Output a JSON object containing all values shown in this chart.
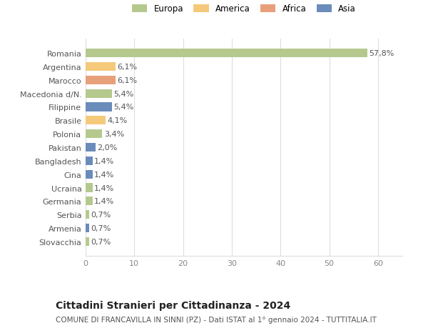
{
  "countries": [
    "Romania",
    "Argentina",
    "Marocco",
    "Macedonia d/N.",
    "Filippine",
    "Brasile",
    "Polonia",
    "Pakistan",
    "Bangladesh",
    "Cina",
    "Ucraina",
    "Germania",
    "Serbia",
    "Armenia",
    "Slovacchia"
  ],
  "values": [
    57.8,
    6.1,
    6.1,
    5.4,
    5.4,
    4.1,
    3.4,
    2.0,
    1.4,
    1.4,
    1.4,
    1.4,
    0.7,
    0.7,
    0.7
  ],
  "labels": [
    "57,8%",
    "6,1%",
    "6,1%",
    "5,4%",
    "5,4%",
    "4,1%",
    "3,4%",
    "2,0%",
    "1,4%",
    "1,4%",
    "1,4%",
    "1,4%",
    "0,7%",
    "0,7%",
    "0,7%"
  ],
  "colors": [
    "#b5c98e",
    "#f5c97a",
    "#e8a07a",
    "#b5c98e",
    "#6b8cba",
    "#f5c97a",
    "#b5c98e",
    "#6b8cba",
    "#6b8cba",
    "#6b8cba",
    "#b5c98e",
    "#b5c98e",
    "#b5c98e",
    "#6b8cba",
    "#b5c98e"
  ],
  "legend_labels": [
    "Europa",
    "America",
    "Africa",
    "Asia"
  ],
  "legend_colors": [
    "#b5c98e",
    "#f5c97a",
    "#e8a07a",
    "#6b8cba"
  ],
  "title": "Cittadini Stranieri per Cittadinanza - 2024",
  "subtitle": "COMUNE DI FRANCAVILLA IN SINNI (PZ) - Dati ISTAT al 1° gennaio 2024 - TUTTITALIA.IT",
  "xlim": [
    0,
    65
  ],
  "xticks": [
    0,
    10,
    20,
    30,
    40,
    50,
    60
  ],
  "bg_color": "#ffffff",
  "grid_color": "#dddddd",
  "bar_height": 0.65,
  "label_fontsize": 8,
  "tick_fontsize": 8,
  "legend_fontsize": 8.5,
  "title_fontsize": 10,
  "subtitle_fontsize": 7.5
}
